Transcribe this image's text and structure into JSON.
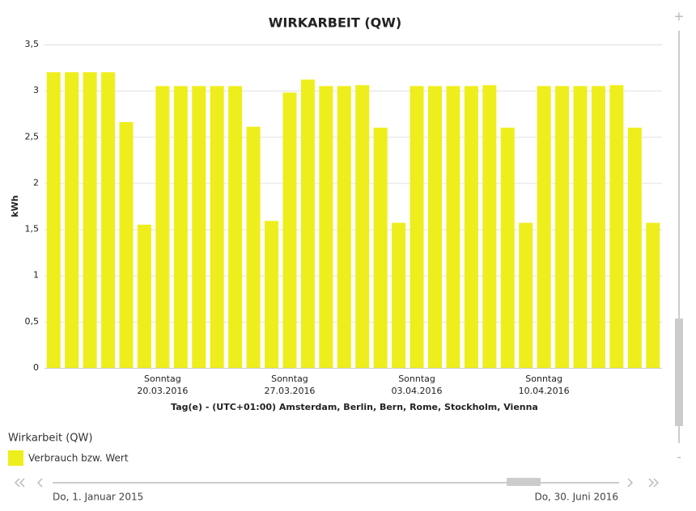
{
  "chart_data": {
    "type": "bar",
    "title": "WIRKARBEIT (QW)",
    "y_label": "kWh",
    "x_label": "Tag(e) - (UTC+01:00) Amsterdam, Berlin, Bern, Rome, Stockholm, Vienna",
    "legend_title": "Wirkarbeit (QW)",
    "categories": [
      null,
      null,
      null,
      null,
      null,
      null,
      [
        "Sonntag",
        "20.03.2016"
      ],
      null,
      null,
      null,
      null,
      null,
      null,
      [
        "Sonntag",
        "27.03.2016"
      ],
      null,
      null,
      null,
      null,
      null,
      null,
      [
        "Sonntag",
        "03.04.2016"
      ],
      null,
      null,
      null,
      null,
      null,
      null,
      [
        "Sonntag",
        "10.04.2016"
      ],
      null,
      null,
      null,
      null,
      null,
      null
    ],
    "series": [
      {
        "name": "Verbrauch bzw. Wert",
        "color": "#eeee1c",
        "values": [
          3.2,
          3.2,
          3.2,
          3.2,
          2.66,
          1.55,
          3.05,
          3.05,
          3.05,
          3.05,
          3.05,
          2.61,
          1.59,
          2.98,
          3.12,
          3.05,
          3.05,
          3.06,
          2.6,
          1.57,
          3.05,
          3.05,
          3.05,
          3.05,
          3.06,
          2.6,
          1.57,
          3.05,
          3.05,
          3.05,
          3.05,
          3.06,
          2.6,
          1.57
        ]
      }
    ],
    "ylim": [
      0,
      3.5
    ],
    "yticks": [
      0,
      {
        "value": 0.5,
        "label": "0,5"
      },
      1,
      {
        "value": 1.5,
        "label": "1,5"
      },
      2,
      {
        "value": 2.5,
        "label": "2,5"
      },
      3,
      {
        "value": 3.5,
        "label": "3,5"
      }
    ],
    "grid": true
  },
  "navigator": {
    "start": "Do, 1. Januar 2015",
    "end": "Do, 30. Juni 2016"
  }
}
